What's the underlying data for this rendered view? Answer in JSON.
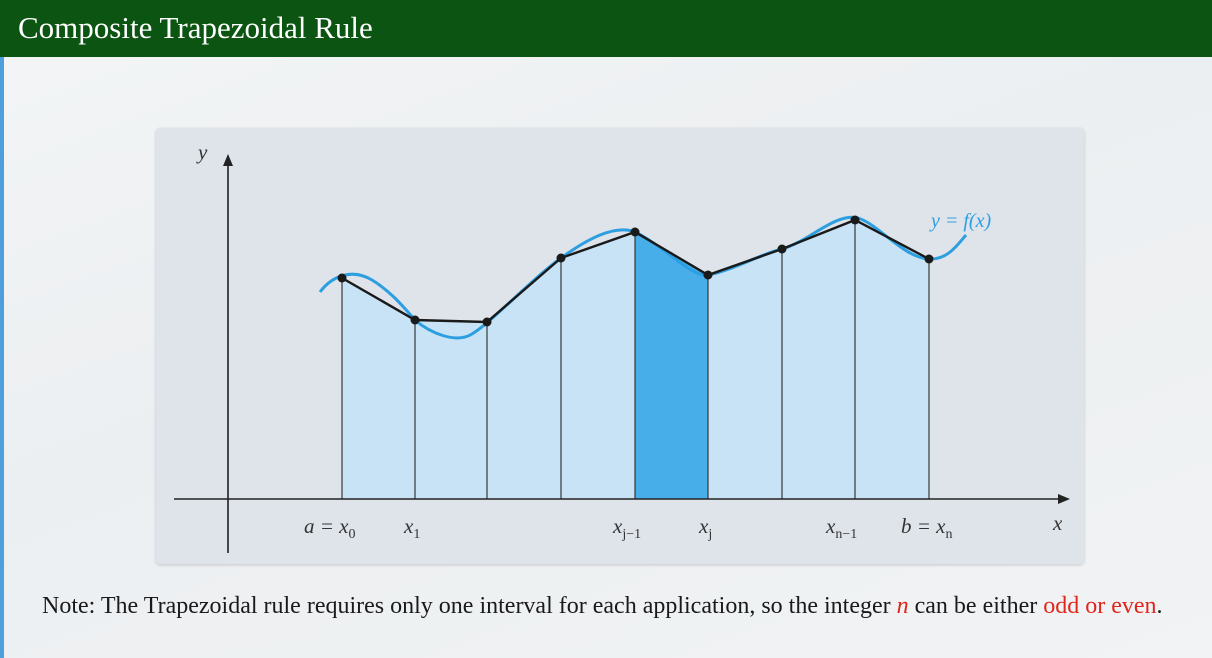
{
  "slide": {
    "title": "Composite Trapezoidal Rule"
  },
  "diagram": {
    "y_axis_label": "y",
    "x_axis_label": "x",
    "curve_label": "y = f(x)",
    "tick_labels": [
      {
        "main": "a = x",
        "sub": "0"
      },
      {
        "main": "x",
        "sub": "1"
      },
      {
        "main": "x",
        "sub": "j−1"
      },
      {
        "main": "x",
        "sub": "j"
      },
      {
        "main": "x",
        "sub": "n−1"
      },
      {
        "main": "b = x",
        "sub": "n"
      }
    ],
    "colors": {
      "curve": "#2d9fe0",
      "trapezoid_fill": "#c8e3f6",
      "highlight_fill": "#47aeea",
      "polyline": "#1a1a1a",
      "axis": "#222222"
    }
  },
  "note": {
    "part1": "Note: The Trapezoidal rule requires only one interval for each application, so the integer ",
    "var": "n",
    "part2": " can be either ",
    "emphasis": "odd or even",
    "part3": "."
  }
}
